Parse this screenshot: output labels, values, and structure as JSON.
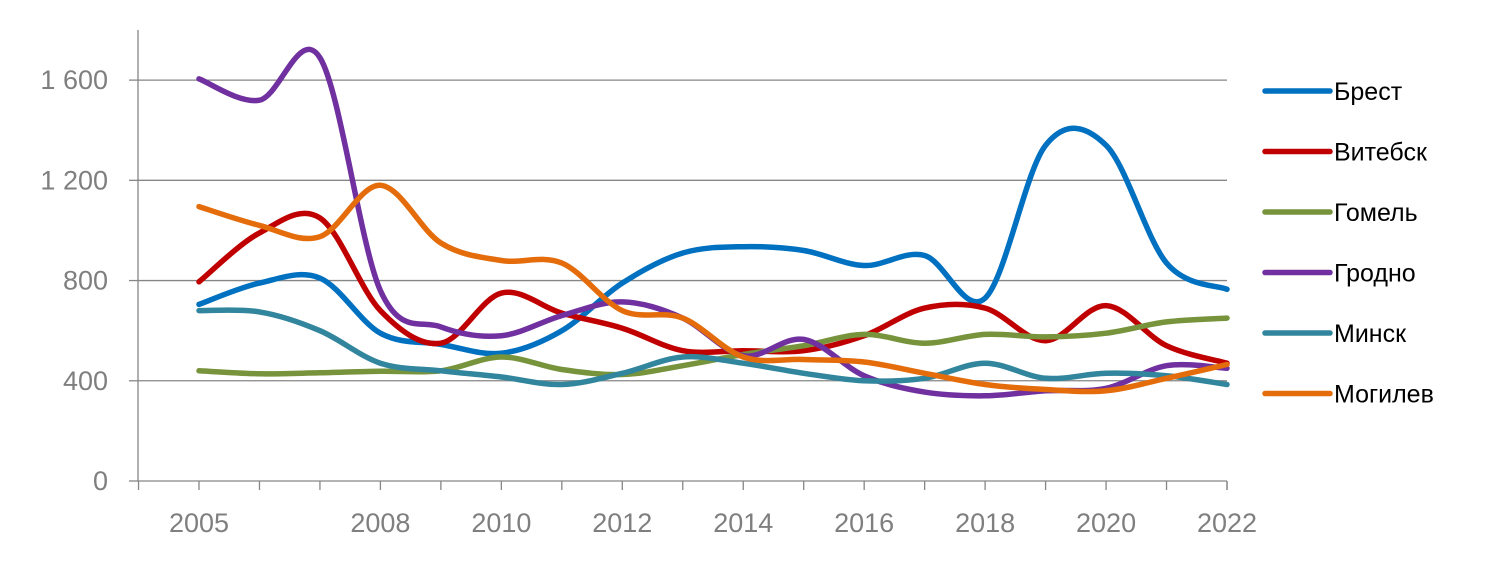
{
  "chart_data": {
    "type": "line",
    "title": "",
    "xlabel": "",
    "ylabel": "",
    "ylim": [
      0,
      1800
    ],
    "yticks": [
      0,
      400,
      800,
      1200,
      1600
    ],
    "ytick_labels": [
      "0",
      "400",
      "800",
      "1 200",
      "1 600"
    ],
    "xlim": [
      2005,
      2022
    ],
    "xtick_labels": [
      "2005",
      "2008",
      "2010",
      "2012",
      "2014",
      "2016",
      "2018",
      "2020",
      "2022"
    ],
    "xtick_values": [
      2005,
      2008,
      2010,
      2012,
      2014,
      2016,
      2018,
      2020,
      2022
    ],
    "grid": true,
    "legend_position": "right",
    "x": [
      2005,
      2006,
      2007,
      2008,
      2009,
      2010,
      2011,
      2012,
      2013,
      2014,
      2015,
      2016,
      2017,
      2018,
      2019,
      2020,
      2021,
      2022
    ],
    "series": [
      {
        "name": "Брест",
        "color": "#0070C0",
        "values": [
          705,
          790,
          810,
          590,
          545,
          510,
          600,
          790,
          910,
          935,
          920,
          860,
          900,
          730,
          1340,
          1340,
          870,
          765
        ]
      },
      {
        "name": "Витебск",
        "color": "#C00000",
        "values": [
          795,
          990,
          1050,
          680,
          550,
          750,
          670,
          610,
          520,
          520,
          520,
          580,
          690,
          690,
          560,
          700,
          540,
          470
        ]
      },
      {
        "name": "Гомель",
        "color": "#77933C",
        "values": [
          440,
          428,
          432,
          438,
          440,
          495,
          445,
          425,
          460,
          505,
          540,
          585,
          550,
          585,
          575,
          590,
          635,
          650
        ]
      },
      {
        "name": "Гродно",
        "color": "#7030A0",
        "values": [
          1605,
          1520,
          1690,
          760,
          615,
          580,
          660,
          715,
          650,
          500,
          565,
          420,
          355,
          340,
          360,
          370,
          460,
          450
        ]
      },
      {
        "name": "Минск",
        "color": "#31859C",
        "values": [
          680,
          675,
          600,
          470,
          440,
          415,
          385,
          430,
          495,
          470,
          430,
          400,
          410,
          470,
          410,
          430,
          420,
          385
        ]
      },
      {
        "name": "Могилев",
        "color": "#E46C0A",
        "values": [
          1095,
          1020,
          975,
          1180,
          950,
          880,
          870,
          680,
          650,
          495,
          485,
          475,
          430,
          385,
          365,
          360,
          410,
          465
        ]
      }
    ]
  }
}
